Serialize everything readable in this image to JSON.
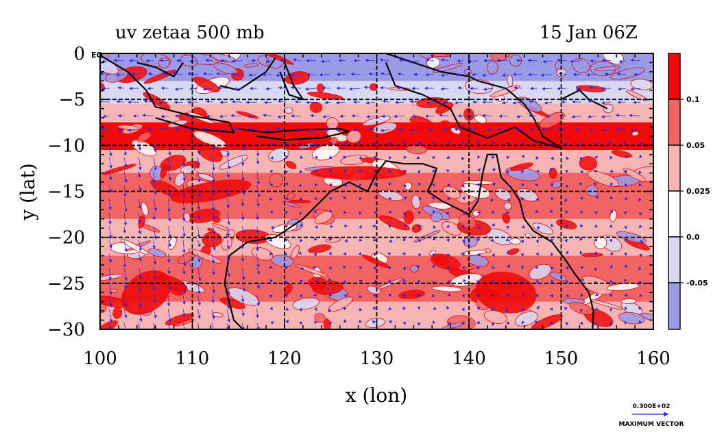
{
  "title_left": "uv zetaa 500 mb",
  "title_right": "15 Jan 06Z",
  "eq_label": "EQ",
  "xlabel": "x (lon)",
  "ylabel": "y (lat)",
  "colorbar_labels": [
    "0.1",
    "0.05",
    "0.025",
    "0.0",
    "-0.05"
  ],
  "vector_legend": {
    "magnitude": "0.300E+02",
    "caption": "MAXIMUM VECTOR"
  },
  "colors": {
    "strong_pos": "#f00a0a",
    "mid_pos": "#f06464",
    "weak_pos": "#f5b4b4",
    "neutral": "#ffffff",
    "weak_neg": "#d8d8f2",
    "neg": "#9a9ae6",
    "vector": "#2828e6",
    "contour": "#e60000",
    "coast": "#000000"
  },
  "chart_data": {
    "type": "heatmap",
    "title": "uv zetaa 500 mb",
    "time": "15 Jan 06Z",
    "xlabel": "x (lon)",
    "ylabel": "y (lat)",
    "xlim": [
      100,
      160
    ],
    "ylim": [
      -30,
      0
    ],
    "x_ticks": [
      100,
      110,
      120,
      130,
      140,
      150,
      160
    ],
    "y_ticks": [
      0,
      -5,
      -10,
      -15,
      -20,
      -25,
      -30
    ],
    "y_tick_labels": [
      "0",
      "−5",
      "−10",
      "−15",
      "−20",
      "−25",
      "−30"
    ],
    "grid": true,
    "colorbar_levels": [
      0.1,
      0.05,
      0.025,
      0.0,
      -0.05
    ],
    "colorbar_placement": "right",
    "vector_legend_placement": "bottom-right",
    "max_vector": 30
  }
}
